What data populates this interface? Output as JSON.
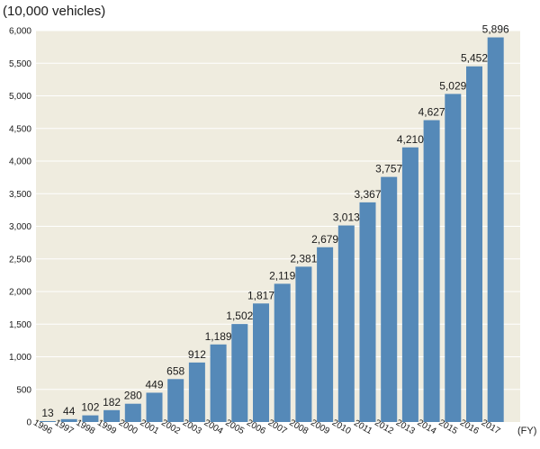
{
  "chart_data": {
    "type": "bar",
    "title": "",
    "unit_label": "(10,000 vehicles)",
    "xlabel": "(FY)",
    "ylabel": "",
    "categories": [
      "1996",
      "1997",
      "1998",
      "1999",
      "2000",
      "2001",
      "2002",
      "2003",
      "2004",
      "2005",
      "2006",
      "2007",
      "2008",
      "2009",
      "2010",
      "2011",
      "2012",
      "2013",
      "2014",
      "2015",
      "2016",
      "2017"
    ],
    "values": [
      13,
      44,
      102,
      182,
      280,
      449,
      658,
      912,
      1189,
      1502,
      1817,
      2119,
      2381,
      2679,
      3013,
      3367,
      3757,
      4210,
      4627,
      5029,
      5452,
      5896
    ],
    "value_labels": [
      "13",
      "44",
      "102",
      "182",
      "280",
      "449",
      "658",
      "912",
      "1,189",
      "1,502",
      "1,817",
      "2,119",
      "2,381",
      "2,679",
      "3,013",
      "3,367",
      "3,757",
      "4,210",
      "4,627",
      "5,029",
      "5,452",
      "5,896"
    ],
    "ylim": [
      0,
      6000
    ],
    "yticks": [
      0,
      500,
      1000,
      1500,
      2000,
      2500,
      3000,
      3500,
      4000,
      4500,
      5000,
      5500,
      6000
    ],
    "ytick_labels": [
      "0",
      "500",
      "1,000",
      "1,500",
      "2,000",
      "2,500",
      "3,000",
      "3,500",
      "4,000",
      "4,500",
      "5,000",
      "5,500",
      "6,000"
    ],
    "grid": true,
    "legend": "none",
    "colors": {
      "bar": "#5589b8",
      "plot_background": "#efecdf",
      "gridline": "#ffffff",
      "text": "#1a1a1a"
    }
  }
}
